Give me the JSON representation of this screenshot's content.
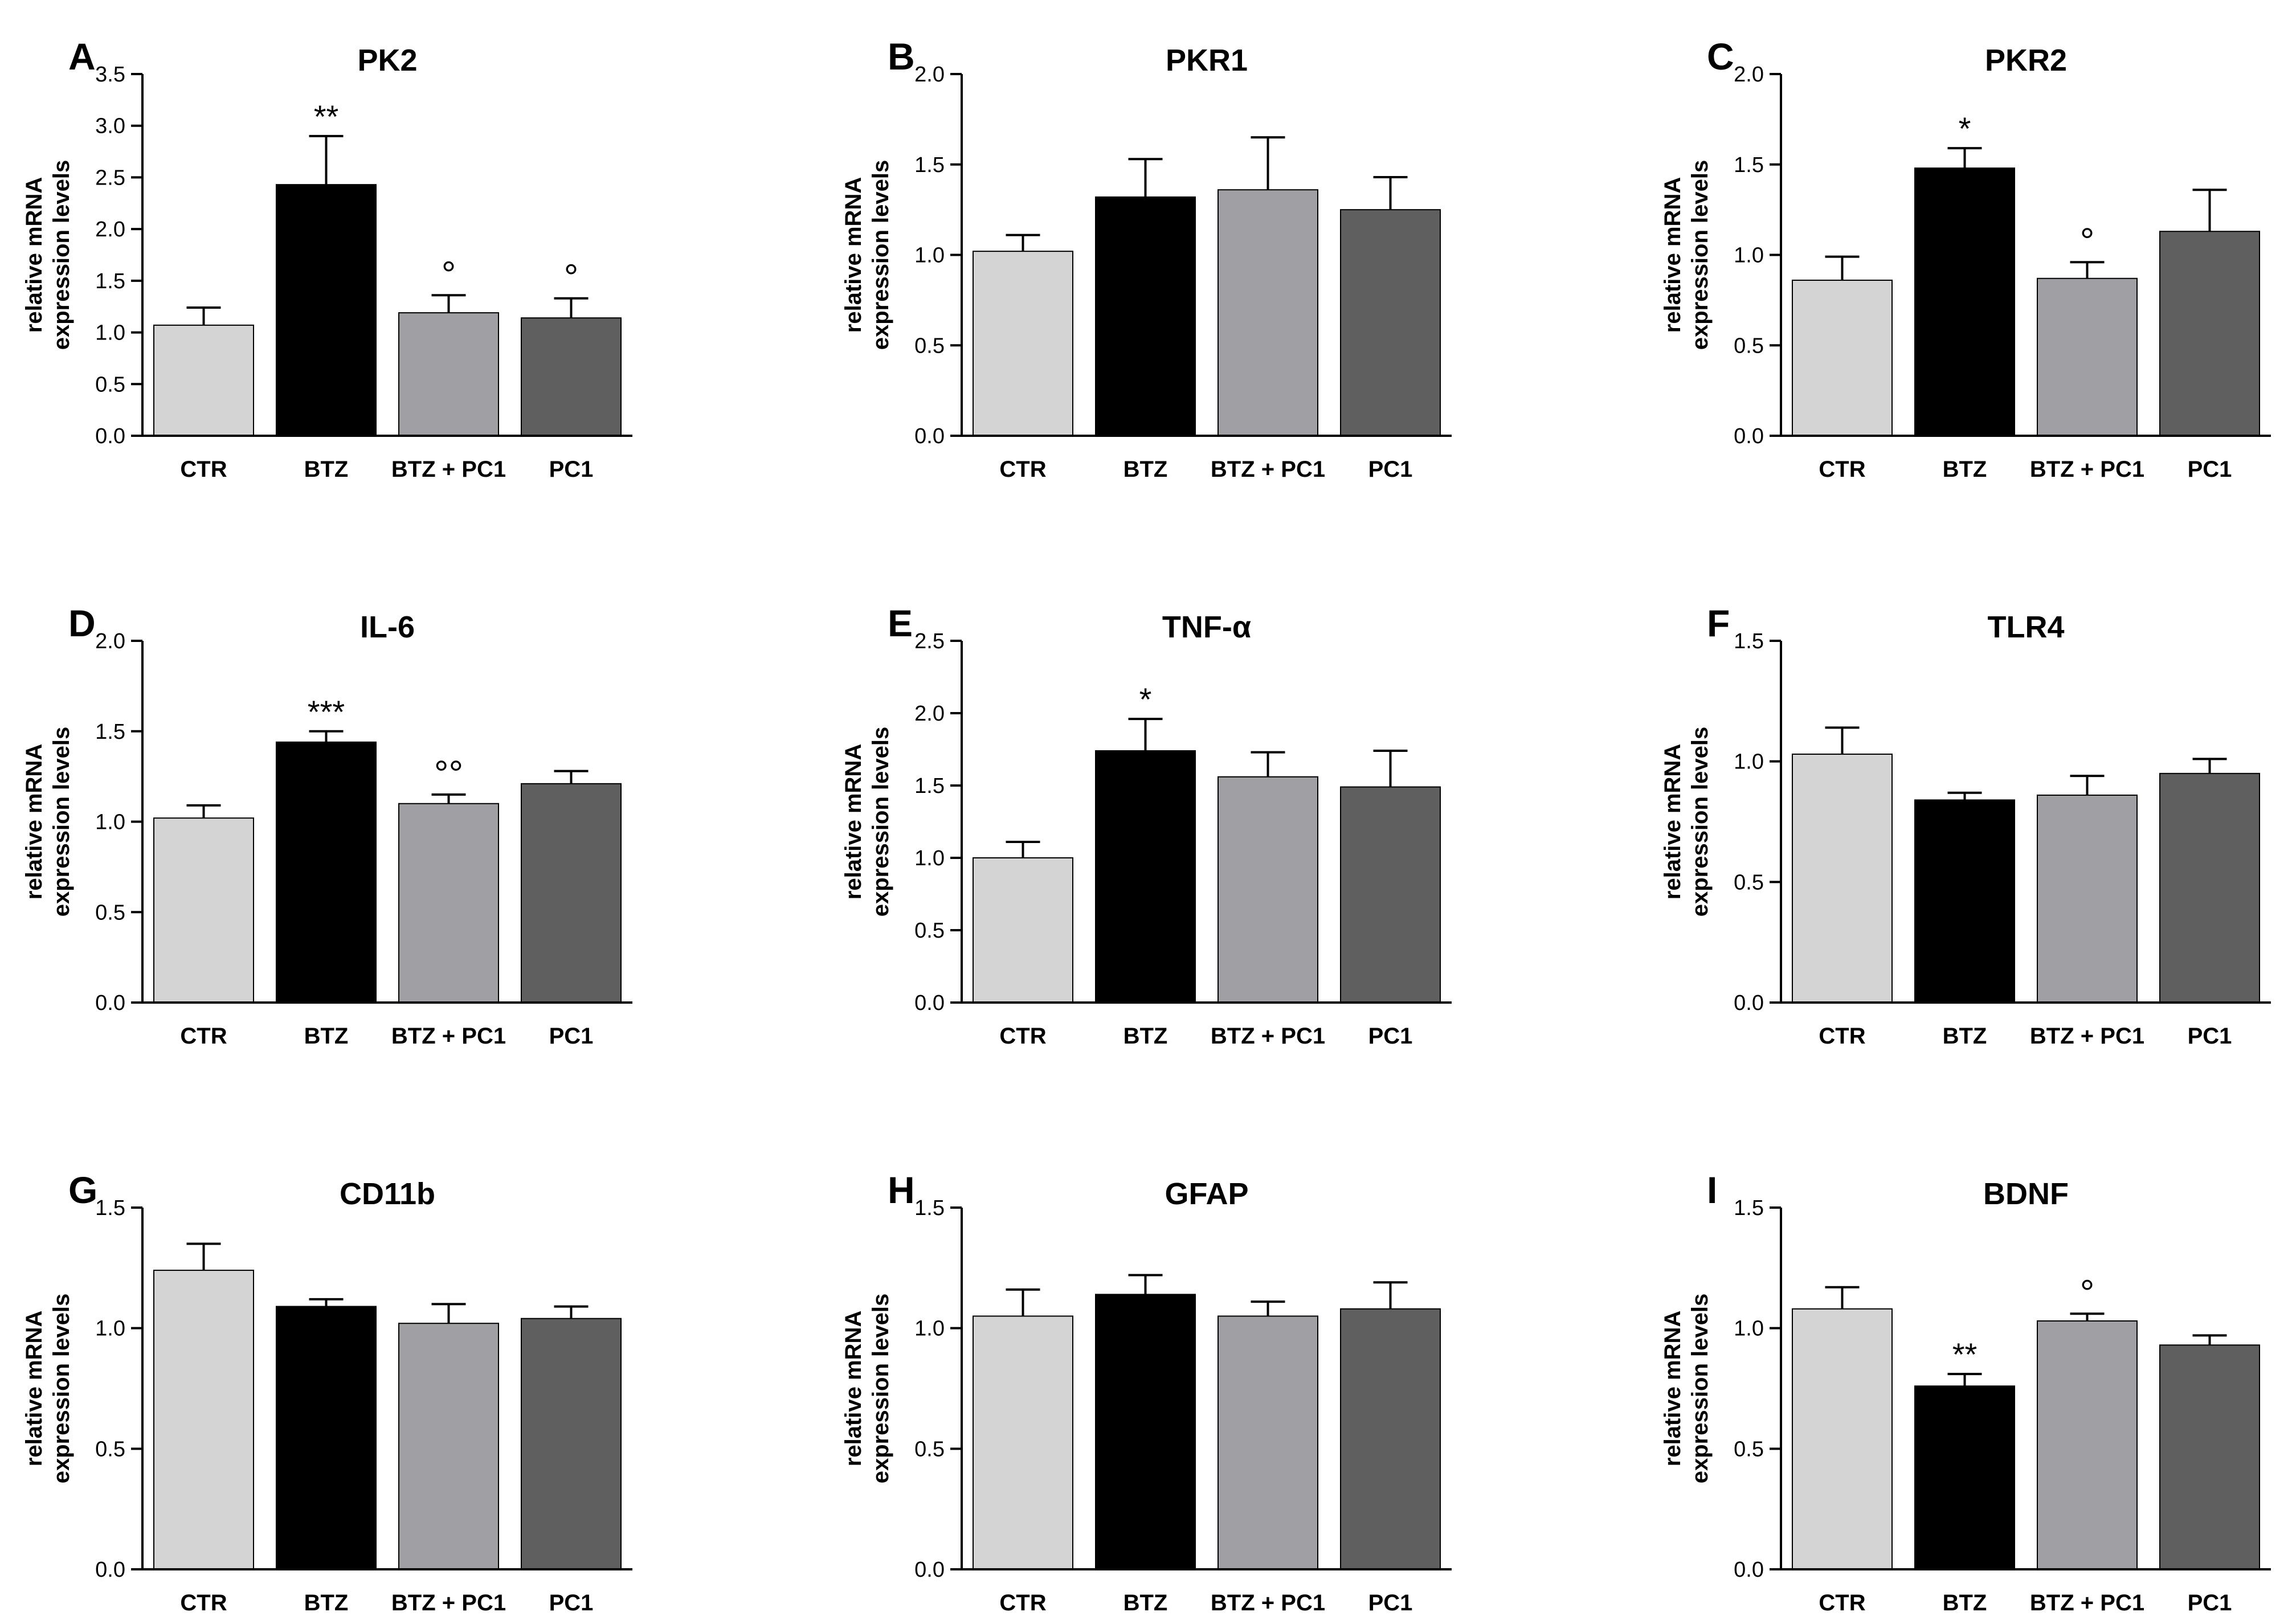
{
  "figure": {
    "ylabel_line1": "relative mRNA",
    "ylabel_line2": "expression levels"
  },
  "colors": {
    "CTR": "#d4d4d4",
    "BTZ": "#000000",
    "BTZ + PC1": "#a0a0a4",
    "PC1": "#5f5f5f",
    "axis": "#000000"
  },
  "chart_data": [
    {
      "panel": "A",
      "type": "bar",
      "title": "PK2",
      "categories": [
        "CTR",
        "BTZ",
        "BTZ + PC1",
        "PC1"
      ],
      "values": [
        1.07,
        2.43,
        1.19,
        1.14
      ],
      "errors": [
        0.17,
        0.47,
        0.17,
        0.19
      ],
      "annotations": [
        "",
        "**",
        "°",
        "°"
      ],
      "ylim": [
        0,
        3.5
      ],
      "yticks": [
        "0.0",
        "0.5",
        "1.0",
        "1.5",
        "2.0",
        "2.5",
        "3.0",
        "3.5"
      ]
    },
    {
      "panel": "B",
      "type": "bar",
      "title": "PKR1",
      "categories": [
        "CTR",
        "BTZ",
        "BTZ + PC1",
        "PC1"
      ],
      "values": [
        1.02,
        1.32,
        1.36,
        1.25
      ],
      "errors": [
        0.09,
        0.21,
        0.29,
        0.18
      ],
      "annotations": [
        "",
        "",
        "",
        ""
      ],
      "ylim": [
        0,
        2.0
      ],
      "yticks": [
        "0.0",
        "0.5",
        "1.0",
        "1.5",
        "2.0"
      ]
    },
    {
      "panel": "C",
      "type": "bar",
      "title": "PKR2",
      "categories": [
        "CTR",
        "BTZ",
        "BTZ + PC1",
        "PC1"
      ],
      "values": [
        0.86,
        1.48,
        0.87,
        1.13
      ],
      "errors": [
        0.13,
        0.11,
        0.09,
        0.23
      ],
      "annotations": [
        "",
        "*",
        "°",
        ""
      ],
      "ylim": [
        0,
        2.0
      ],
      "yticks": [
        "0.0",
        "0.5",
        "1.0",
        "1.5",
        "2.0"
      ]
    },
    {
      "panel": "D",
      "type": "bar",
      "title": "IL-6",
      "categories": [
        "CTR",
        "BTZ",
        "BTZ + PC1",
        "PC1"
      ],
      "values": [
        1.02,
        1.44,
        1.1,
        1.21
      ],
      "errors": [
        0.07,
        0.06,
        0.05,
        0.07
      ],
      "annotations": [
        "",
        "***",
        "°°",
        ""
      ],
      "ylim": [
        0,
        2.0
      ],
      "yticks": [
        "0.0",
        "0.5",
        "1.0",
        "1.5",
        "2.0"
      ]
    },
    {
      "panel": "E",
      "type": "bar",
      "title": "TNF-α",
      "categories": [
        "CTR",
        "BTZ",
        "BTZ + PC1",
        "PC1"
      ],
      "values": [
        1.0,
        1.74,
        1.56,
        1.49
      ],
      "errors": [
        0.11,
        0.22,
        0.17,
        0.25
      ],
      "annotations": [
        "",
        "*",
        "",
        ""
      ],
      "ylim": [
        0,
        2.5
      ],
      "yticks": [
        "0.0",
        "0.5",
        "1.0",
        "1.5",
        "2.0",
        "2.5"
      ]
    },
    {
      "panel": "F",
      "type": "bar",
      "title": "TLR4",
      "categories": [
        "CTR",
        "BTZ",
        "BTZ + PC1",
        "PC1"
      ],
      "values": [
        1.03,
        0.84,
        0.86,
        0.95
      ],
      "errors": [
        0.11,
        0.03,
        0.08,
        0.06
      ],
      "annotations": [
        "",
        "",
        "",
        ""
      ],
      "ylim": [
        0,
        1.5
      ],
      "yticks": [
        "0.0",
        "0.5",
        "1.0",
        "1.5"
      ]
    },
    {
      "panel": "G",
      "type": "bar",
      "title": "CD11b",
      "categories": [
        "CTR",
        "BTZ",
        "BTZ + PC1",
        "PC1"
      ],
      "values": [
        1.24,
        1.09,
        1.02,
        1.04
      ],
      "errors": [
        0.11,
        0.03,
        0.08,
        0.05
      ],
      "annotations": [
        "",
        "",
        "",
        ""
      ],
      "ylim": [
        0,
        1.5
      ],
      "yticks": [
        "0.0",
        "0.5",
        "1.0",
        "1.5"
      ]
    },
    {
      "panel": "H",
      "type": "bar",
      "title": "GFAP",
      "categories": [
        "CTR",
        "BTZ",
        "BTZ + PC1",
        "PC1"
      ],
      "values": [
        1.05,
        1.14,
        1.05,
        1.08
      ],
      "errors": [
        0.11,
        0.08,
        0.06,
        0.11
      ],
      "annotations": [
        "",
        "",
        "",
        ""
      ],
      "ylim": [
        0,
        1.5
      ],
      "yticks": [
        "0.0",
        "0.5",
        "1.0",
        "1.5"
      ]
    },
    {
      "panel": "I",
      "type": "bar",
      "title": "BDNF",
      "categories": [
        "CTR",
        "BTZ",
        "BTZ + PC1",
        "PC1"
      ],
      "values": [
        1.08,
        0.76,
        1.03,
        0.93
      ],
      "errors": [
        0.09,
        0.05,
        0.03,
        0.04
      ],
      "annotations": [
        "",
        "**",
        "°",
        ""
      ],
      "ylim": [
        0,
        1.5
      ],
      "yticks": [
        "0.0",
        "0.5",
        "1.0",
        "1.5"
      ]
    }
  ]
}
